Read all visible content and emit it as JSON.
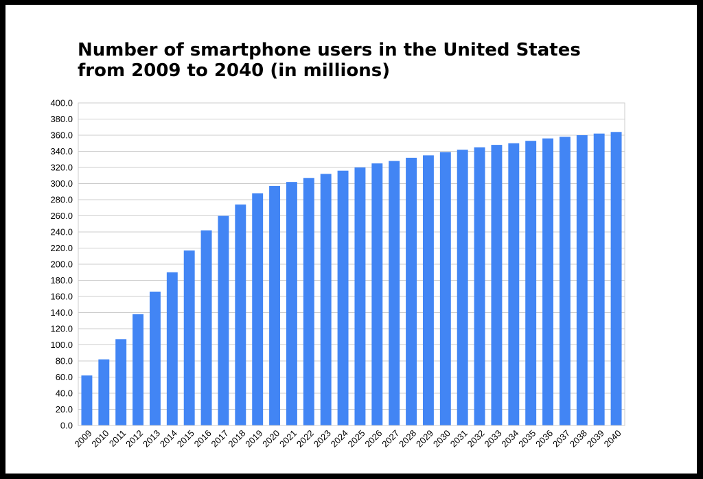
{
  "chart_data": {
    "type": "bar",
    "title_lines": [
      "Number of smartphone users in the United States",
      "from 2009 to 2040 (in millions)"
    ],
    "xlabel": "",
    "ylabel": "",
    "ylim": [
      0,
      400
    ],
    "ytick_step": 20,
    "ytick_labels": [
      "0.0",
      "20.0",
      "40.0",
      "60.0",
      "80.0",
      "100.0",
      "120.0",
      "140.0",
      "160.0",
      "180.0",
      "200.0",
      "220.0",
      "240.0",
      "260.0",
      "280.0",
      "300.0",
      "320.0",
      "340.0",
      "360.0",
      "380.0",
      "400.0"
    ],
    "grid": true,
    "legend": "none",
    "bar_color": "#4285f4",
    "categories": [
      "2009",
      "2010",
      "2011",
      "2012",
      "2013",
      "2014",
      "2015",
      "2016",
      "2017",
      "2018",
      "2019",
      "2020",
      "2021",
      "2022",
      "2023",
      "2024",
      "2025",
      "2026",
      "2027",
      "2028",
      "2029",
      "2030",
      "2031",
      "2032",
      "2033",
      "2034",
      "2035",
      "2036",
      "2037",
      "2038",
      "2039",
      "2040"
    ],
    "values": [
      62,
      82,
      107,
      138,
      166,
      190,
      217,
      242,
      260,
      274,
      288,
      297,
      302,
      307,
      312,
      316,
      320,
      325,
      328,
      332,
      335,
      339,
      342,
      345,
      348,
      350,
      353,
      356,
      358,
      360,
      362,
      364
    ]
  }
}
